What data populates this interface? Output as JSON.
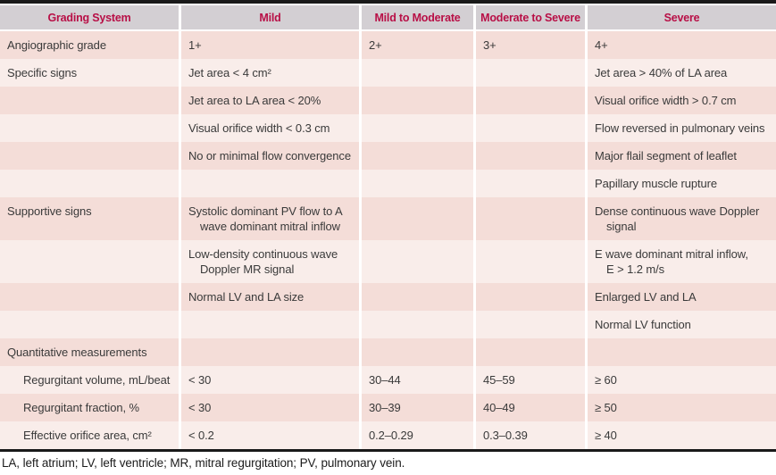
{
  "colors": {
    "header_bg": "#d3cfd3",
    "header_text": "#b80f46",
    "row_dark": "#f4ddd8",
    "row_light": "#f9edea",
    "body_text": "#3a3a3a",
    "border_black": "#191919",
    "page_bg": "#ffffff"
  },
  "table": {
    "headers": [
      "Grading System",
      "Mild",
      "Mild to Moderate",
      "Moderate to Severe",
      "Severe"
    ],
    "rows": [
      {
        "cells": [
          "Angiographic grade",
          "1+",
          "2+",
          "3+",
          "4+"
        ]
      },
      {
        "cells": [
          "Specific signs",
          "Jet area < 4 cm²",
          "",
          "",
          "Jet area > 40% of LA area"
        ]
      },
      {
        "cells": [
          "",
          "Jet area to LA area < 20%",
          "",
          "",
          "Visual orifice width > 0.7 cm"
        ]
      },
      {
        "cells": [
          "",
          "Visual orifice width < 0.3 cm",
          "",
          "",
          "Flow reversed in pulmonary veins"
        ]
      },
      {
        "cells": [
          "",
          "No or minimal flow convergence",
          "",
          "",
          "Major flail segment of leaflet"
        ]
      },
      {
        "cells": [
          "",
          "",
          "",
          "",
          "Papillary muscle rupture"
        ]
      },
      {
        "cells": [
          "Supportive signs",
          "Systolic dominant PV flow to A\nwave dominant mitral inflow",
          "",
          "",
          "Dense continuous wave Doppler\nsignal"
        ]
      },
      {
        "cells": [
          "",
          "Low-density continuous wave\nDoppler MR signal",
          "",
          "",
          "E wave dominant mitral inflow,\nE > 1.2 m/s"
        ]
      },
      {
        "cells": [
          "",
          "Normal LV and LA size",
          "",
          "",
          "Enlarged LV and LA"
        ]
      },
      {
        "cells": [
          "",
          "",
          "",
          "",
          "Normal LV function"
        ]
      },
      {
        "cells": [
          "Quantitative measurements",
          "",
          "",
          "",
          ""
        ]
      },
      {
        "indent": true,
        "cells": [
          "Regurgitant volume, mL/beat",
          "< 30",
          "30–44",
          "45–59",
          "≥ 60"
        ]
      },
      {
        "indent": true,
        "cells": [
          "Regurgitant fraction, %",
          "< 30",
          "30–39",
          "40–49",
          "≥ 50"
        ]
      },
      {
        "indent": true,
        "cells": [
          "Effective orifice area, cm²",
          "< 0.2",
          "0.2–0.29",
          "0.3–0.39",
          "≥ 40"
        ]
      }
    ]
  },
  "footnote": "LA, left atrium; LV, left ventricle; MR, mitral regurgitation; PV, pulmonary vein."
}
